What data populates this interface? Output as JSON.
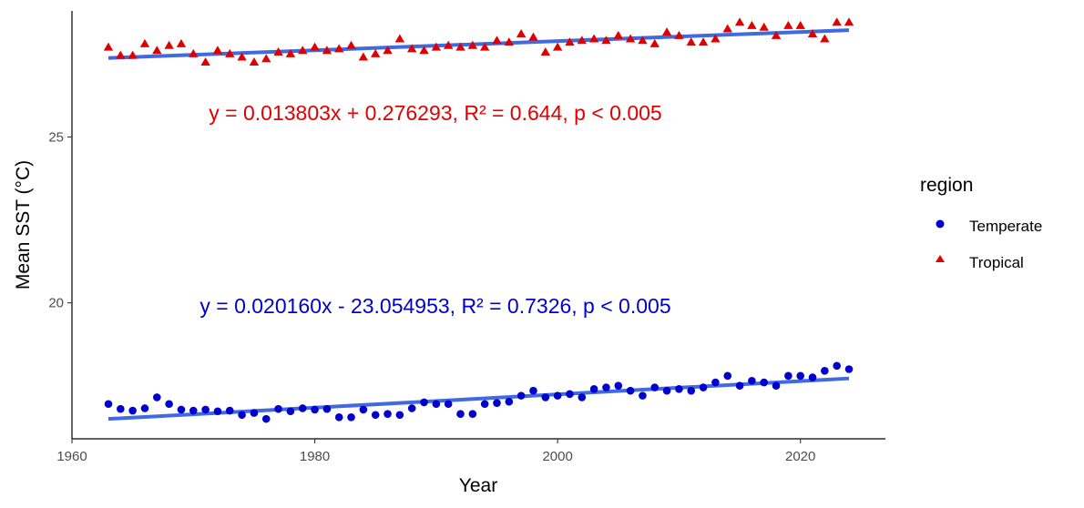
{
  "chart_data": {
    "type": "scatter",
    "title": "",
    "xlabel": "Year",
    "ylabel": "Mean SST (°C)",
    "xlim": [
      1960,
      2027
    ],
    "ylim": [
      15.9,
      28.8
    ],
    "x_ticks": [
      1960,
      1980,
      2000,
      2020
    ],
    "y_ticks": [
      20,
      25
    ],
    "grid": false,
    "legend": {
      "title": "region",
      "position": "right",
      "entries": [
        {
          "label": "Temperate",
          "marker": "circle",
          "color": "#0000CD"
        },
        {
          "label": "Tropical",
          "marker": "triangle",
          "color": "#E00000"
        }
      ]
    },
    "trend_line_color": "#4169E1",
    "series": [
      {
        "name": "Temperate",
        "marker": "circle",
        "color": "#0000CD",
        "x": [
          1963,
          1964,
          1965,
          1966,
          1967,
          1968,
          1969,
          1970,
          1971,
          1972,
          1973,
          1974,
          1975,
          1976,
          1977,
          1978,
          1979,
          1980,
          1981,
          1982,
          1983,
          1984,
          1985,
          1986,
          1987,
          1988,
          1989,
          1990,
          1991,
          1992,
          1993,
          1994,
          1995,
          1996,
          1997,
          1998,
          1999,
          2000,
          2001,
          2002,
          2003,
          2004,
          2005,
          2006,
          2007,
          2008,
          2009,
          2010,
          2011,
          2012,
          2013,
          2014,
          2015,
          2016,
          2017,
          2018,
          2019,
          2020,
          2021,
          2022,
          2023,
          2024
        ],
        "y": [
          16.95,
          16.8,
          16.75,
          16.82,
          17.15,
          16.95,
          16.78,
          16.75,
          16.78,
          16.73,
          16.75,
          16.62,
          16.68,
          16.5,
          16.8,
          16.73,
          16.82,
          16.78,
          16.8,
          16.55,
          16.55,
          16.78,
          16.62,
          16.65,
          16.62,
          16.82,
          17.0,
          16.95,
          16.95,
          16.65,
          16.65,
          16.95,
          16.98,
          17.02,
          17.2,
          17.35,
          17.15,
          17.2,
          17.25,
          17.15,
          17.4,
          17.45,
          17.5,
          17.35,
          17.2,
          17.45,
          17.35,
          17.4,
          17.35,
          17.45,
          17.6,
          17.8,
          17.5,
          17.65,
          17.6,
          17.5,
          17.8,
          17.8,
          17.75,
          17.95,
          18.1,
          18.0
        ],
        "trend": {
          "x": [
            1963,
            2024
          ],
          "y": [
            16.5,
            17.72
          ]
        },
        "annotation": "y = 0.020160x - 23.054953, R² = 0.7326, p < 0.005"
      },
      {
        "name": "Tropical",
        "marker": "triangle",
        "color": "#E00000",
        "x": [
          1963,
          1964,
          1965,
          1966,
          1967,
          1968,
          1969,
          1970,
          1971,
          1972,
          1973,
          1974,
          1975,
          1976,
          1977,
          1978,
          1979,
          1980,
          1981,
          1982,
          1983,
          1984,
          1985,
          1986,
          1987,
          1988,
          1989,
          1990,
          1991,
          1992,
          1993,
          1994,
          1995,
          1996,
          1997,
          1998,
          1999,
          2000,
          2001,
          2002,
          2003,
          2004,
          2005,
          2006,
          2007,
          2008,
          2009,
          2010,
          2011,
          2012,
          2013,
          2014,
          2015,
          2016,
          2017,
          2018,
          2019,
          2020,
          2021,
          2022,
          2023,
          2024
        ],
        "y": [
          27.7,
          27.45,
          27.45,
          27.8,
          27.6,
          27.75,
          27.8,
          27.5,
          27.25,
          27.6,
          27.5,
          27.4,
          27.25,
          27.35,
          27.55,
          27.5,
          27.6,
          27.7,
          27.6,
          27.65,
          27.75,
          27.4,
          27.5,
          27.6,
          27.95,
          27.65,
          27.6,
          27.7,
          27.75,
          27.7,
          27.75,
          27.7,
          27.9,
          27.85,
          28.1,
          28.0,
          27.55,
          27.7,
          27.85,
          27.9,
          27.95,
          27.9,
          28.05,
          27.95,
          27.9,
          27.8,
          28.15,
          28.05,
          27.85,
          27.85,
          27.95,
          28.25,
          28.45,
          28.35,
          28.3,
          28.05,
          28.35,
          28.35,
          28.1,
          27.95,
          28.45,
          28.45
        ],
        "trend": {
          "x": [
            1963,
            2024
          ],
          "y": [
            27.38,
            28.22
          ]
        },
        "annotation": "y = 0.013803x + 0.276293, R² = 0.644, p < 0.005"
      }
    ]
  }
}
